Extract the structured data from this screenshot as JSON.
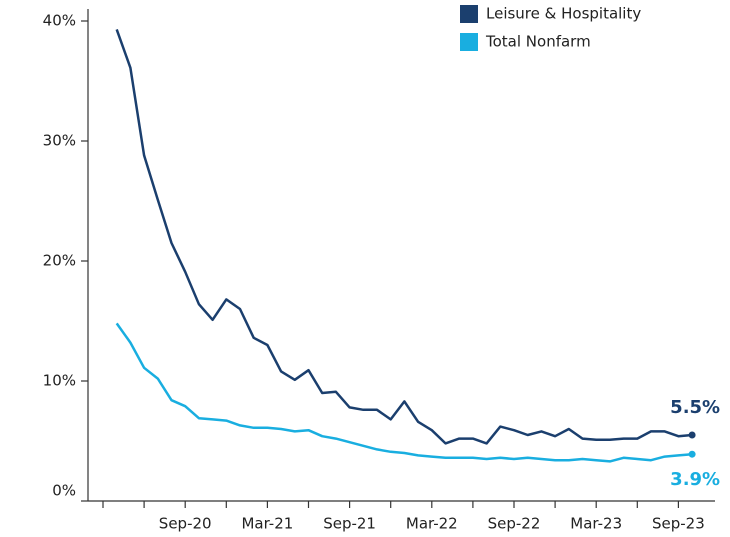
{
  "chart_data": {
    "type": "line",
    "categories": [
      null,
      null,
      null,
      null,
      null,
      null,
      "Sep-20",
      null,
      null,
      null,
      null,
      null,
      "Mar-21",
      null,
      null,
      null,
      null,
      null,
      "Sep-21",
      null,
      null,
      null,
      null,
      null,
      "Mar-22",
      null,
      null,
      null,
      null,
      null,
      "Sep-22",
      null,
      null,
      null,
      null,
      null,
      "Mar-23",
      null,
      null,
      null,
      null,
      null,
      "Sep-23",
      null
    ],
    "series": [
      {
        "name": "Leisure & Hospitality",
        "color": "#1b3f6e",
        "values": [
          null,
          39.3,
          36.1,
          28.8,
          25.1,
          21.5,
          19.1,
          16.4,
          15.1,
          16.8,
          16.0,
          13.6,
          13.0,
          10.8,
          10.1,
          10.9,
          9.0,
          9.1,
          7.8,
          7.6,
          7.6,
          6.8,
          8.3,
          6.6,
          5.9,
          4.8,
          5.2,
          5.2,
          4.8,
          6.2,
          5.9,
          5.5,
          5.8,
          5.4,
          6.0,
          5.2,
          5.1,
          5.1,
          5.2,
          5.2,
          5.8,
          5.8,
          5.4,
          5.5
        ],
        "value_labels": [
          null,
          null,
          null,
          null,
          null,
          null,
          null,
          null,
          null,
          null,
          null,
          null,
          null,
          null,
          null,
          null,
          null,
          null,
          null,
          null,
          null,
          null,
          null,
          null,
          null,
          null,
          null,
          null,
          null,
          null,
          null,
          null,
          null,
          null,
          null,
          null,
          null,
          null,
          null,
          null,
          null,
          null,
          null,
          "5.5%"
        ]
      },
      {
        "name": "Total Nonfarm",
        "color": "#19aee0",
        "values": [
          null,
          14.8,
          13.2,
          11.1,
          10.2,
          8.4,
          7.9,
          6.9,
          6.8,
          6.7,
          6.3,
          6.1,
          6.1,
          6.0,
          5.8,
          5.9,
          5.4,
          5.2,
          4.9,
          4.6,
          4.3,
          4.1,
          4.0,
          3.8,
          3.7,
          3.6,
          3.6,
          3.6,
          3.5,
          3.6,
          3.5,
          3.6,
          3.5,
          3.4,
          3.4,
          3.5,
          3.4,
          3.3,
          3.6,
          3.5,
          3.4,
          3.7,
          3.8,
          3.9
        ],
        "value_labels": [
          null,
          null,
          null,
          null,
          null,
          null,
          null,
          null,
          null,
          null,
          null,
          null,
          null,
          null,
          null,
          null,
          null,
          null,
          null,
          null,
          null,
          null,
          null,
          null,
          null,
          null,
          null,
          null,
          null,
          null,
          null,
          null,
          null,
          null,
          null,
          null,
          null,
          null,
          null,
          null,
          null,
          null,
          null,
          "3.9%"
        ]
      }
    ],
    "ylim": [
      0,
      41
    ],
    "yticks": [
      {
        "value": 0,
        "label": "0%"
      },
      {
        "value": 10,
        "label": "10%"
      },
      {
        "value": 20,
        "label": "20%"
      },
      {
        "value": 30,
        "label": "30%"
      },
      {
        "value": 40,
        "label": "40%"
      }
    ],
    "legend": "top-right"
  }
}
